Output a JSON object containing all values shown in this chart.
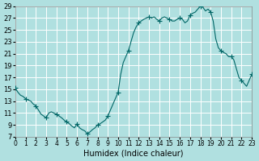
{
  "xlabel": "Humidex (Indice chaleur)",
  "ylabel": "",
  "background_color": "#b0e0e0",
  "grid_color": "#ffffff",
  "line_color": "#006666",
  "marker_color": "#006666",
  "ylim": [
    7,
    29
  ],
  "xlim": [
    0,
    23
  ],
  "yticks": [
    7,
    9,
    11,
    13,
    15,
    17,
    19,
    21,
    23,
    25,
    27,
    29
  ],
  "xticks": [
    0,
    1,
    2,
    3,
    4,
    5,
    6,
    7,
    8,
    9,
    10,
    11,
    12,
    13,
    14,
    15,
    16,
    17,
    18,
    19,
    20,
    21,
    22,
    23
  ],
  "x": [
    0,
    0.25,
    0.5,
    0.75,
    1.0,
    1.25,
    1.5,
    1.75,
    2.0,
    2.25,
    2.5,
    2.75,
    3.0,
    3.25,
    3.5,
    3.75,
    4.0,
    4.25,
    4.5,
    4.75,
    5.0,
    5.25,
    5.5,
    5.75,
    6.0,
    6.25,
    6.5,
    6.75,
    7.0,
    7.25,
    7.5,
    7.75,
    8.0,
    8.25,
    8.5,
    8.75,
    9.0,
    9.25,
    9.5,
    9.75,
    10.0,
    10.25,
    10.5,
    10.75,
    11.0,
    11.25,
    11.5,
    11.75,
    12.0,
    12.25,
    12.5,
    12.75,
    13.0,
    13.25,
    13.5,
    13.75,
    14.0,
    14.25,
    14.5,
    14.75,
    15.0,
    15.25,
    15.5,
    15.75,
    16.0,
    16.25,
    16.5,
    16.75,
    17.0,
    17.25,
    17.5,
    17.75,
    18.0,
    18.25,
    18.5,
    18.75,
    19.0,
    19.25,
    19.5,
    19.75,
    20.0,
    20.25,
    20.5,
    20.75,
    21.0,
    21.25,
    21.5,
    21.75,
    22.0,
    22.25,
    22.5,
    22.75,
    23.0
  ],
  "y": [
    15.2,
    14.5,
    14.0,
    13.8,
    13.4,
    13.2,
    13.0,
    12.5,
    12.2,
    11.5,
    10.8,
    10.5,
    10.2,
    11.0,
    11.2,
    11.0,
    10.8,
    10.5,
    10.2,
    9.8,
    9.5,
    9.2,
    8.8,
    8.5,
    9.2,
    8.5,
    8.2,
    8.0,
    7.5,
    7.8,
    8.2,
    8.5,
    9.0,
    9.2,
    9.5,
    9.8,
    10.5,
    11.5,
    12.5,
    13.5,
    14.5,
    17.5,
    19.5,
    20.5,
    21.5,
    23.0,
    24.5,
    25.5,
    26.2,
    26.5,
    26.8,
    27.0,
    27.2,
    27.0,
    27.2,
    26.8,
    26.5,
    27.0,
    27.2,
    27.0,
    26.8,
    26.5,
    26.5,
    26.8,
    27.0,
    26.8,
    26.2,
    26.5,
    27.5,
    27.8,
    28.0,
    28.5,
    29.0,
    28.8,
    28.2,
    28.5,
    28.0,
    26.5,
    23.5,
    22.0,
    21.5,
    21.2,
    21.0,
    20.5,
    20.5,
    20.0,
    18.5,
    17.0,
    16.5,
    16.0,
    15.5,
    16.5,
    17.5
  ],
  "marker_x": [
    0,
    1,
    2,
    3,
    4,
    5,
    6,
    7,
    8,
    9,
    10,
    11,
    12,
    13,
    14,
    15,
    16,
    17,
    18,
    19,
    20,
    21,
    22,
    23
  ],
  "marker_y": [
    15.2,
    13.4,
    12.2,
    10.2,
    10.8,
    9.5,
    9.2,
    7.5,
    9.0,
    10.5,
    14.5,
    21.5,
    26.2,
    27.2,
    26.5,
    26.8,
    27.0,
    27.5,
    29.0,
    28.0,
    21.5,
    20.5,
    16.5,
    17.5
  ]
}
